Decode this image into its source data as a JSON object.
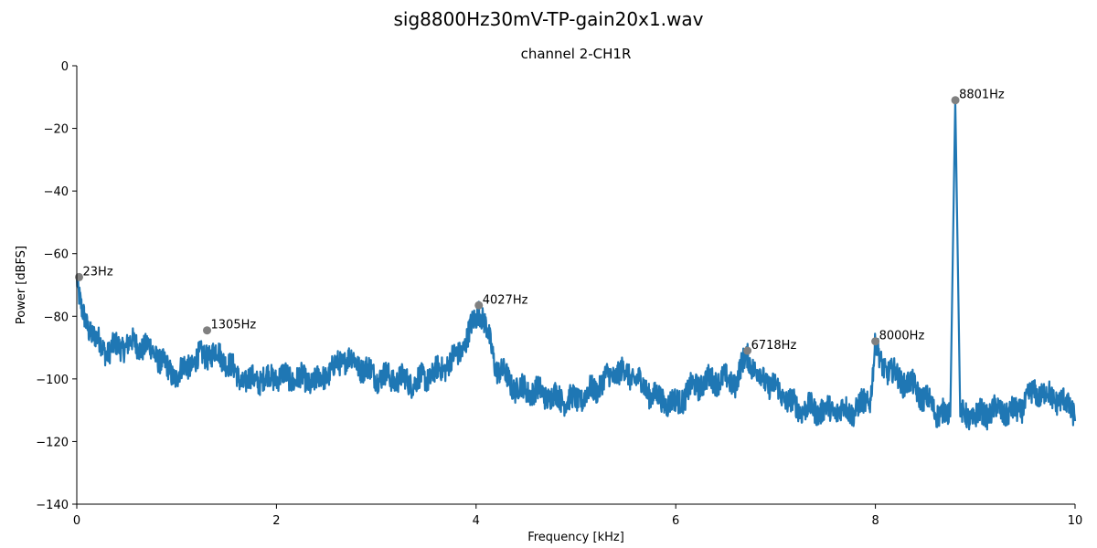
{
  "chart_data": {
    "type": "line",
    "suptitle": "sig8800Hz30mV-TP-gain20x1.wav",
    "title": "channel 2-CH1R",
    "xlabel": "Frequency [kHz]",
    "ylabel": "Power [dBFS]",
    "xlim": [
      0,
      10
    ],
    "ylim": [
      -140,
      0
    ],
    "xticks": [
      0,
      2,
      4,
      6,
      8,
      10
    ],
    "xtick_labels": [
      "0",
      "2",
      "4",
      "6",
      "8",
      "10"
    ],
    "yticks": [
      0,
      -20,
      -40,
      -60,
      -80,
      -100,
      -120,
      -140
    ],
    "ytick_labels": [
      "0",
      "−20",
      "−40",
      "−60",
      "−80",
      "−100",
      "−120",
      "−140"
    ],
    "grid": false,
    "line_color": "#1f77b4",
    "marker_color": "#808080",
    "series": [
      {
        "x": [
          0.0,
          0.02,
          0.05,
          0.1,
          0.15,
          0.2,
          0.3,
          0.4,
          0.5,
          0.6,
          0.7,
          0.8,
          0.9,
          1.0,
          1.1,
          1.2,
          1.3,
          1.4,
          1.5,
          1.6,
          1.7,
          1.8,
          1.9,
          2.0,
          2.2,
          2.4,
          2.6,
          2.7,
          2.8,
          3.0,
          3.2,
          3.4,
          3.6,
          3.8,
          3.9,
          4.0,
          4.03,
          4.1,
          4.2,
          4.4,
          4.6,
          4.8,
          5.0,
          5.2,
          5.3,
          5.4,
          5.5,
          5.6,
          5.8,
          6.0,
          6.2,
          6.4,
          6.6,
          6.72,
          6.8,
          7.0,
          7.2,
          7.4,
          7.6,
          7.8,
          7.95,
          8.0,
          8.05,
          8.2,
          8.4,
          8.6,
          8.75,
          8.8,
          8.85,
          9.0,
          9.2,
          9.4,
          9.6,
          9.8,
          10.0
        ],
        "values": [
          -68,
          -74,
          -79,
          -82,
          -85,
          -88,
          -91,
          -90,
          -89,
          -89,
          -90,
          -92,
          -97,
          -99,
          -96,
          -94,
          -92,
          -92,
          -94,
          -99,
          -101,
          -100,
          -100,
          -99,
          -100,
          -101,
          -96,
          -93,
          -95,
          -99,
          -100,
          -101,
          -98,
          -93,
          -88,
          -80,
          -77,
          -84,
          -96,
          -103,
          -104,
          -106,
          -107,
          -103,
          -100,
          -98,
          -98,
          -100,
          -106,
          -108,
          -102,
          -100,
          -101,
          -92,
          -98,
          -103,
          -109,
          -110,
          -110,
          -110,
          -106,
          -89,
          -95,
          -99,
          -103,
          -110,
          -112,
          -11,
          -112,
          -112,
          -110,
          -111,
          -104,
          -106,
          -110
        ]
      }
    ],
    "peaks": [
      {
        "x": 0.023,
        "y": -67.5,
        "label": "23Hz"
      },
      {
        "x": 1.305,
        "y": -84.5,
        "label": "1305Hz"
      },
      {
        "x": 4.027,
        "y": -76.5,
        "label": "4027Hz"
      },
      {
        "x": 6.718,
        "y": -91.0,
        "label": "6718Hz"
      },
      {
        "x": 8.0,
        "y": -88.0,
        "label": "8000Hz"
      },
      {
        "x": 8.801,
        "y": -11.0,
        "label": "8801Hz"
      }
    ]
  }
}
